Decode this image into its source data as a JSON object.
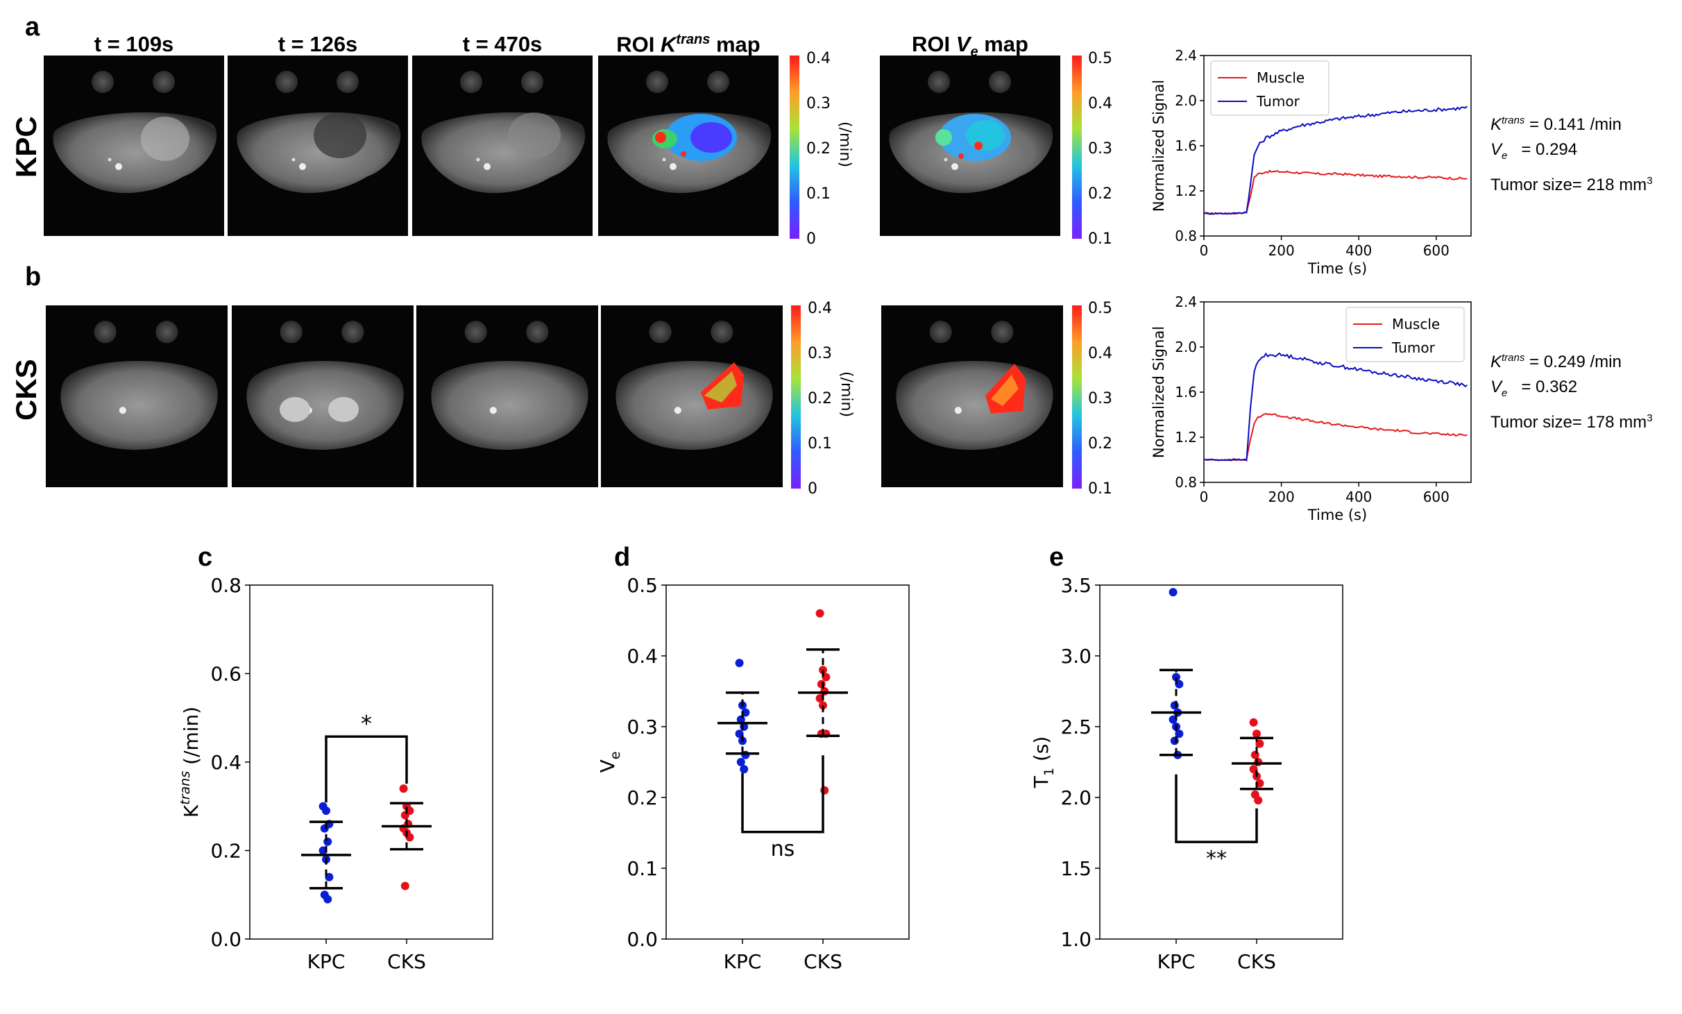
{
  "panel_letters": {
    "a": "a",
    "b": "b",
    "c": "c",
    "d": "d",
    "e": "e"
  },
  "rows": {
    "a_label": "KPC",
    "b_label": "CKS"
  },
  "image_titles": {
    "t1": "t = 109s",
    "t2": "t = 126s",
    "t3": "t = 470s",
    "ktrans_prefix": "ROI ",
    "ktrans_k": "K",
    "ktrans_sup": "trans",
    "ktrans_suffix": " map",
    "ve_prefix": "ROI ",
    "ve_v": "V",
    "ve_sub": "e",
    "ve_suffix": " map"
  },
  "colorbars": {
    "ktrans": {
      "ticks": [
        "0.4",
        "0.3",
        "0.2",
        "0.1",
        "0"
      ],
      "unit": "(/min)"
    },
    "ve": {
      "ticks": [
        "0.5",
        "0.4",
        "0.3",
        "0.2",
        "0.1"
      ]
    }
  },
  "stats": {
    "kpc": {
      "ktrans_label": "K",
      "ktrans_sup": "trans",
      "ktrans_value": " = 0.141 /min",
      "ve_label": "V",
      "ve_sub": "e",
      "ve_value": "   = 0.294",
      "size_text": "Tumor size= 218 mm",
      "size_sup": "3"
    },
    "cks": {
      "ktrans_label": "K",
      "ktrans_sup": "trans",
      "ktrans_value": " = 0.249 /min",
      "ve_label": "V",
      "ve_sub": "e",
      "ve_value": "   = 0.362",
      "size_text": "Tumor size= 178 mm",
      "size_sup": "3"
    }
  },
  "colors": {
    "muscle": "#e31a1c",
    "tumor": "#0b0bbf",
    "kpc_dots": "#0a1ed6",
    "cks_dots": "#e3101a"
  },
  "chart_data": [
    {
      "id": "a-curve",
      "type": "line",
      "xlabel": "Time (s)",
      "ylabel": "Normalized Signal",
      "xlim": [
        0,
        690
      ],
      "ylim": [
        0.8,
        2.4
      ],
      "xticks": [
        "0",
        "200",
        "400",
        "600"
      ],
      "yticks": [
        "0.8",
        "1.2",
        "1.6",
        "2.0",
        "2.4"
      ],
      "legend_position": "top-left",
      "series": [
        {
          "name": "Muscle",
          "x": [
            0,
            40,
            80,
            110,
            120,
            130,
            140,
            160,
            200,
            250,
            300,
            350,
            400,
            450,
            500,
            550,
            600,
            650,
            680
          ],
          "y": [
            1.0,
            1.0,
            1.0,
            1.01,
            1.15,
            1.32,
            1.35,
            1.37,
            1.37,
            1.36,
            1.35,
            1.35,
            1.34,
            1.33,
            1.33,
            1.32,
            1.32,
            1.31,
            1.31
          ]
        },
        {
          "name": "Tumor",
          "x": [
            0,
            40,
            80,
            110,
            120,
            130,
            140,
            160,
            200,
            250,
            300,
            350,
            400,
            450,
            500,
            550,
            600,
            650,
            680
          ],
          "y": [
            1.0,
            1.0,
            1.0,
            1.01,
            1.25,
            1.52,
            1.6,
            1.67,
            1.73,
            1.78,
            1.81,
            1.84,
            1.86,
            1.88,
            1.9,
            1.91,
            1.92,
            1.93,
            1.94
          ]
        }
      ]
    },
    {
      "id": "b-curve",
      "type": "line",
      "xlabel": "Time (s)",
      "ylabel": "Normalized Signal",
      "xlim": [
        0,
        690
      ],
      "ylim": [
        0.8,
        2.4
      ],
      "xticks": [
        "0",
        "200",
        "400",
        "600"
      ],
      "yticks": [
        "0.8",
        "1.2",
        "1.6",
        "2.0",
        "2.4"
      ],
      "legend_position": "top-right",
      "series": [
        {
          "name": "Muscle",
          "x": [
            0,
            40,
            80,
            110,
            120,
            130,
            140,
            160,
            200,
            250,
            300,
            350,
            400,
            450,
            500,
            550,
            600,
            650,
            680
          ],
          "y": [
            1.0,
            1.0,
            1.0,
            1.0,
            1.18,
            1.32,
            1.38,
            1.41,
            1.39,
            1.36,
            1.33,
            1.31,
            1.29,
            1.27,
            1.26,
            1.24,
            1.23,
            1.22,
            1.22
          ]
        },
        {
          "name": "Tumor",
          "x": [
            0,
            40,
            80,
            110,
            120,
            130,
            140,
            160,
            200,
            250,
            300,
            350,
            400,
            450,
            500,
            550,
            600,
            650,
            680
          ],
          "y": [
            1.0,
            1.0,
            1.0,
            1.0,
            1.45,
            1.78,
            1.88,
            1.93,
            1.93,
            1.9,
            1.86,
            1.83,
            1.8,
            1.77,
            1.75,
            1.72,
            1.7,
            1.68,
            1.65
          ]
        }
      ]
    },
    {
      "id": "c",
      "type": "scatter",
      "ylabel_main": "K",
      "ylabel_sup": "trans",
      "ylabel_tail": " (/min)",
      "categories": [
        "KPC",
        "CKS"
      ],
      "ylim": [
        0,
        0.8
      ],
      "yticks": [
        "0.0",
        "0.2",
        "0.4",
        "0.6",
        "0.8"
      ],
      "groups": [
        {
          "category": "KPC",
          "mean": 0.19,
          "sd": 0.075,
          "points": [
            0.3,
            0.29,
            0.26,
            0.25,
            0.22,
            0.2,
            0.18,
            0.14,
            0.1,
            0.09
          ]
        },
        {
          "category": "CKS",
          "mean": 0.255,
          "sd": 0.052,
          "points": [
            0.34,
            0.3,
            0.29,
            0.28,
            0.26,
            0.25,
            0.24,
            0.23,
            0.12
          ]
        }
      ],
      "significance": "*",
      "bracket": "top"
    },
    {
      "id": "d",
      "type": "scatter",
      "ylabel_main": "V",
      "ylabel_sub": "e",
      "categories": [
        "KPC",
        "CKS"
      ],
      "ylim": [
        0,
        0.5
      ],
      "yticks": [
        "0.0",
        "0.1",
        "0.2",
        "0.3",
        "0.4",
        "0.5"
      ],
      "groups": [
        {
          "category": "KPC",
          "mean": 0.305,
          "sd": 0.043,
          "points": [
            0.39,
            0.33,
            0.32,
            0.31,
            0.3,
            0.29,
            0.28,
            0.26,
            0.25,
            0.24
          ]
        },
        {
          "category": "CKS",
          "mean": 0.348,
          "sd": 0.061,
          "points": [
            0.46,
            0.38,
            0.37,
            0.36,
            0.35,
            0.34,
            0.33,
            0.29,
            0.29,
            0.21
          ]
        }
      ],
      "significance": "ns",
      "bracket": "bottom"
    },
    {
      "id": "e",
      "type": "scatter",
      "ylabel_main": "T",
      "ylabel_sub": "1",
      "ylabel_tail": " (s)",
      "categories": [
        "KPC",
        "CKS"
      ],
      "ylim": [
        1.0,
        3.5
      ],
      "yticks": [
        "1.0",
        "1.5",
        "2.0",
        "2.5",
        "3.0",
        "3.5"
      ],
      "groups": [
        {
          "category": "KPC",
          "mean": 2.6,
          "sd": 0.3,
          "points": [
            3.45,
            2.85,
            2.8,
            2.65,
            2.6,
            2.55,
            2.5,
            2.45,
            2.4,
            2.3
          ]
        },
        {
          "category": "CKS",
          "mean": 2.24,
          "sd": 0.18,
          "points": [
            2.53,
            2.45,
            2.38,
            2.3,
            2.25,
            2.2,
            2.15,
            2.1,
            2.02,
            1.98
          ]
        }
      ],
      "significance": "**",
      "bracket": "bottom"
    }
  ]
}
